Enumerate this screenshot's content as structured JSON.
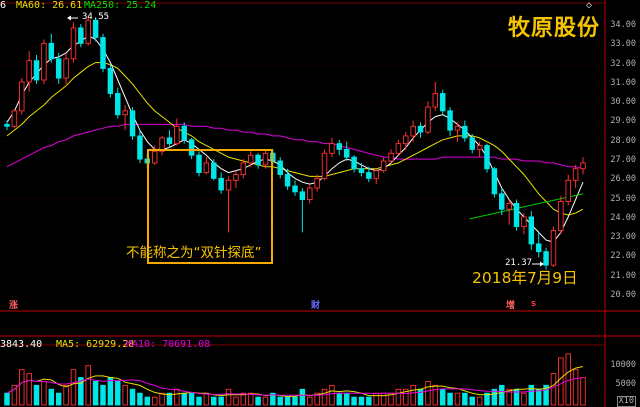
{
  "header": {
    "ma5_label": "6",
    "ma60_label": "MA60: 26.61",
    "ma250_label": "MA250: 25.24",
    "diamond": "◇"
  },
  "stock_name": "牧原股份",
  "annotations": {
    "box_caption": "不能称之为“双针探底”",
    "date_label": "2018年7月9日",
    "high_price": "34.55",
    "low_price": "21.37"
  },
  "markers": {
    "zhang": "涨",
    "cai": "财",
    "zeng": "增",
    "s": "S"
  },
  "volume_header": {
    "vol": "3843.40",
    "ma5": "MA5: 62929.28",
    "ma10": "MA10: 70691.08"
  },
  "price_axis": [
    "34.00",
    "33.00",
    "32.00",
    "31.00",
    "30.00",
    "29.00",
    "28.00",
    "27.00",
    "26.00",
    "25.00",
    "24.00",
    "23.00",
    "22.00",
    "21.00",
    "20.00"
  ],
  "volume_axis": [
    "10000",
    "5000",
    "X10"
  ],
  "colors": {
    "up": "#ff3232",
    "down": "#00e5e5",
    "ma_white": "#ffffff",
    "ma_yellow": "#e8e000",
    "ma_magenta": "#e000e0",
    "ma_green": "#00d000",
    "accent": "#f5c400"
  },
  "chart_data": {
    "type": "candlestick",
    "title": "牧原股份",
    "ylim": [
      20,
      34.8
    ],
    "candles": [
      [
        28.9,
        29.1,
        28.6,
        28.8
      ],
      [
        28.8,
        29.7,
        28.7,
        29.6
      ],
      [
        29.6,
        31.3,
        29.4,
        31.1
      ],
      [
        31.1,
        32.7,
        30.6,
        32.2
      ],
      [
        32.2,
        32.5,
        31.0,
        31.2
      ],
      [
        31.2,
        33.3,
        31.0,
        33.1
      ],
      [
        33.1,
        33.6,
        32.1,
        32.3
      ],
      [
        32.3,
        32.6,
        31.0,
        31.3
      ],
      [
        31.3,
        32.6,
        31.0,
        32.3
      ],
      [
        32.3,
        34.2,
        32.1,
        33.9
      ],
      [
        33.9,
        34.1,
        32.9,
        33.1
      ],
      [
        33.1,
        34.55,
        33.0,
        34.3
      ],
      [
        34.3,
        34.4,
        33.2,
        33.4
      ],
      [
        33.4,
        33.6,
        31.6,
        31.8
      ],
      [
        31.8,
        32.0,
        30.3,
        30.5
      ],
      [
        30.5,
        30.8,
        29.2,
        29.4
      ],
      [
        29.4,
        29.9,
        28.6,
        29.6
      ],
      [
        29.6,
        29.8,
        28.1,
        28.3
      ],
      [
        28.3,
        28.6,
        26.9,
        27.1
      ],
      [
        27.1,
        27.4,
        26.6,
        26.9
      ],
      [
        26.9,
        27.8,
        26.8,
        27.5
      ],
      [
        27.5,
        28.3,
        27.3,
        28.2
      ],
      [
        28.2,
        28.6,
        27.7,
        27.9
      ],
      [
        27.9,
        29.2,
        27.8,
        28.8
      ],
      [
        28.8,
        29.0,
        27.9,
        28.1
      ],
      [
        28.1,
        28.2,
        27.1,
        27.3
      ],
      [
        27.3,
        27.5,
        26.2,
        26.4
      ],
      [
        26.4,
        27.2,
        26.3,
        26.9
      ],
      [
        26.9,
        27.1,
        26.0,
        26.1
      ],
      [
        26.1,
        26.4,
        25.3,
        25.5
      ],
      [
        25.5,
        26.2,
        23.3,
        26.0
      ],
      [
        26.0,
        26.5,
        25.6,
        26.3
      ],
      [
        26.3,
        27.1,
        26.1,
        26.9
      ],
      [
        26.9,
        27.5,
        26.7,
        27.3
      ],
      [
        27.3,
        27.4,
        26.6,
        26.8
      ],
      [
        26.8,
        27.6,
        26.6,
        27.4
      ],
      [
        27.4,
        27.6,
        26.8,
        27.0
      ],
      [
        27.0,
        27.2,
        26.1,
        26.3
      ],
      [
        26.3,
        26.6,
        25.5,
        25.7
      ],
      [
        25.7,
        26.0,
        25.2,
        25.4
      ],
      [
        25.4,
        25.6,
        23.3,
        25.0
      ],
      [
        25.0,
        25.8,
        24.8,
        25.6
      ],
      [
        25.6,
        26.3,
        25.4,
        26.1
      ],
      [
        26.1,
        27.6,
        26.0,
        27.4
      ],
      [
        27.4,
        28.2,
        27.2,
        27.9
      ],
      [
        27.9,
        28.1,
        27.3,
        27.6
      ],
      [
        27.6,
        28.0,
        27.0,
        27.2
      ],
      [
        27.2,
        27.3,
        26.4,
        26.6
      ],
      [
        26.6,
        26.9,
        26.2,
        26.4
      ],
      [
        26.4,
        26.7,
        25.9,
        26.1
      ],
      [
        26.1,
        26.6,
        25.8,
        26.5
      ],
      [
        26.5,
        27.2,
        26.4,
        27.0
      ],
      [
        27.0,
        27.6,
        26.9,
        27.4
      ],
      [
        27.4,
        28.1,
        27.3,
        27.9
      ],
      [
        27.9,
        28.5,
        27.6,
        28.3
      ],
      [
        28.3,
        29.1,
        28.0,
        28.8
      ],
      [
        28.8,
        29.0,
        28.2,
        28.5
      ],
      [
        28.5,
        30.1,
        28.4,
        29.8
      ],
      [
        29.8,
        31.1,
        29.6,
        30.5
      ],
      [
        30.5,
        30.7,
        29.4,
        29.6
      ],
      [
        29.6,
        29.8,
        28.3,
        28.6
      ],
      [
        28.6,
        29.0,
        28.0,
        28.8
      ],
      [
        28.8,
        29.1,
        28.0,
        28.2
      ],
      [
        28.2,
        28.4,
        27.4,
        27.6
      ],
      [
        27.6,
        28.0,
        27.2,
        27.8
      ],
      [
        27.8,
        27.9,
        26.4,
        26.6
      ],
      [
        26.6,
        26.7,
        25.1,
        25.3
      ],
      [
        25.3,
        25.6,
        24.2,
        24.5
      ],
      [
        24.5,
        25.0,
        23.7,
        24.8
      ],
      [
        24.8,
        25.0,
        23.4,
        23.6
      ],
      [
        23.6,
        24.3,
        23.2,
        24.1
      ],
      [
        24.1,
        24.4,
        22.4,
        22.7
      ],
      [
        22.7,
        23.3,
        22.0,
        22.3
      ],
      [
        22.3,
        22.5,
        21.37,
        21.6
      ],
      [
        21.6,
        23.6,
        21.5,
        23.4
      ],
      [
        23.4,
        25.2,
        23.2,
        24.9
      ],
      [
        24.9,
        26.3,
        24.7,
        26.0
      ],
      [
        26.0,
        26.8,
        25.6,
        26.6
      ],
      [
        26.6,
        27.2,
        26.3,
        26.9
      ]
    ],
    "moving_averages": {
      "ma_white": [
        29.0,
        29.6,
        30.4,
        31.1,
        31.5,
        32.0,
        32.3,
        32.4,
        32.6,
        33.0,
        33.2,
        33.5,
        33.3,
        32.8,
        32.1,
        31.2,
        30.3,
        29.4,
        28.6,
        28.0,
        27.6,
        27.6,
        27.7,
        27.9,
        28.1,
        27.9,
        27.6,
        27.3,
        26.9,
        26.6,
        26.4,
        26.5,
        26.6,
        26.8,
        27.0,
        27.1,
        27.0,
        26.8,
        26.4,
        26.1,
        25.9,
        25.8,
        25.9,
        26.2,
        26.6,
        26.9,
        27.1,
        27.0,
        26.8,
        26.6,
        26.5,
        26.6,
        26.9,
        27.3,
        27.7,
        28.2,
        28.6,
        29.0,
        29.3,
        29.4,
        29.2,
        28.9,
        28.6,
        28.2,
        27.8,
        27.2,
        26.4,
        25.6,
        25.0,
        24.5,
        24.1,
        23.7,
        23.3,
        22.9,
        22.8,
        23.3,
        24.1,
        25.0,
        25.9
      ],
      "ma_yellow": [
        28.3,
        28.6,
        28.9,
        29.3,
        29.6,
        29.9,
        30.3,
        30.6,
        30.9,
        31.3,
        31.6,
        31.9,
        32.1,
        32.1,
        32.0,
        31.8,
        31.4,
        31.0,
        30.5,
        30.0,
        29.6,
        29.3,
        29.0,
        28.7,
        28.5,
        28.3,
        28.0,
        27.8,
        27.6,
        27.4,
        27.2,
        27.1,
        27.0,
        26.9,
        26.8,
        26.7,
        26.7,
        26.6,
        26.5,
        26.4,
        26.3,
        26.2,
        26.2,
        26.2,
        26.3,
        26.4,
        26.5,
        26.6,
        26.6,
        26.6,
        26.6,
        26.7,
        26.8,
        26.9,
        27.1,
        27.3,
        27.5,
        27.7,
        27.9,
        28.1,
        28.2,
        28.3,
        28.3,
        28.3,
        28.2,
        28.0,
        27.8,
        27.5,
        27.1,
        26.7,
        26.3,
        25.8,
        25.3,
        24.9,
        24.5,
        24.3,
        24.2,
        24.3,
        24.5
      ],
      "ma_magenta": [
        26.7,
        26.9,
        27.1,
        27.3,
        27.5,
        27.7,
        27.8,
        28.0,
        28.1,
        28.3,
        28.4,
        28.5,
        28.6,
        28.7,
        28.8,
        28.8,
        28.9,
        28.9,
        28.9,
        28.9,
        28.9,
        28.9,
        28.9,
        28.9,
        28.9,
        28.8,
        28.8,
        28.8,
        28.7,
        28.7,
        28.6,
        28.6,
        28.5,
        28.5,
        28.4,
        28.4,
        28.3,
        28.3,
        28.2,
        28.1,
        28.1,
        28.0,
        28.0,
        27.9,
        27.9,
        27.8,
        27.7,
        27.6,
        27.5,
        27.4,
        27.3,
        27.2,
        27.2,
        27.1,
        27.1,
        27.1,
        27.1,
        27.1,
        27.1,
        27.2,
        27.2,
        27.2,
        27.2,
        27.2,
        27.2,
        27.2,
        27.2,
        27.1,
        27.1,
        27.1,
        27.0,
        27.0,
        27.0,
        26.9,
        26.9,
        26.8,
        26.7,
        26.7,
        26.6
      ],
      "ma_green_segment": [
        [
          64,
          24.0
        ],
        [
          78,
          25.3
        ]
      ]
    },
    "volumes": [
      3,
      5,
      9,
      8,
      5,
      6,
      4,
      3,
      5,
      9,
      7,
      10,
      6,
      5,
      7,
      6,
      5,
      4,
      3,
      2,
      2,
      3,
      3,
      4,
      3,
      3,
      2,
      3,
      2,
      2,
      4,
      2,
      3,
      3,
      2,
      2,
      3,
      2,
      2,
      2,
      4,
      2,
      3,
      4,
      5,
      3,
      3,
      2,
      2,
      2,
      3,
      3,
      3,
      4,
      4,
      5,
      4,
      6,
      5,
      4,
      3,
      3,
      3,
      2,
      2,
      3,
      4,
      5,
      4,
      4,
      3,
      5,
      4,
      5,
      8,
      12,
      13,
      9,
      7
    ]
  }
}
